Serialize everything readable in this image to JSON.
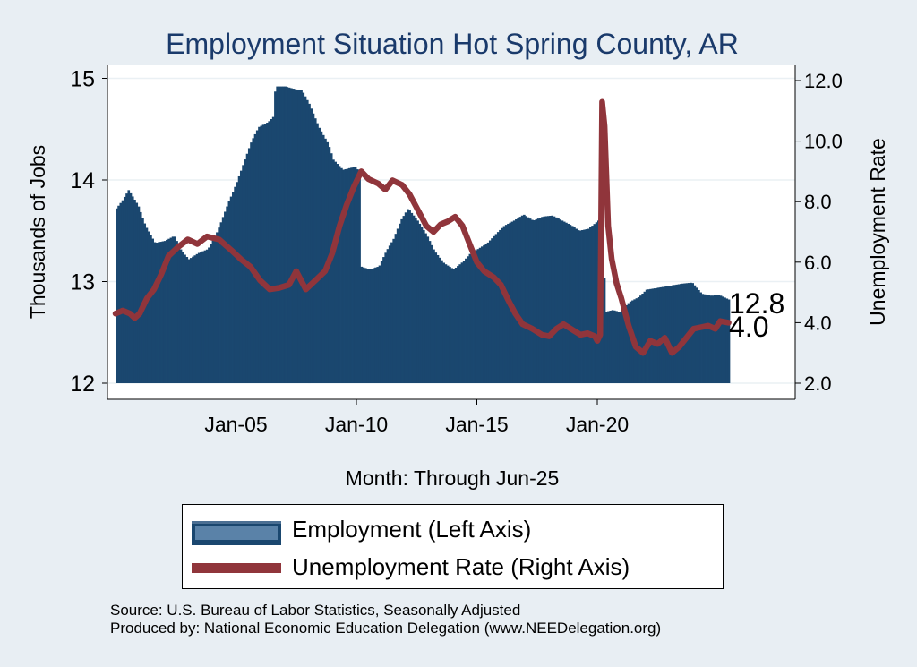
{
  "chart_data": {
    "type": "bar+line",
    "title": "Employment Situation Hot Spring  County, AR",
    "xlabel": "Month: Through Jun-25",
    "ylabel_left": "Thousands of Jobs",
    "ylabel_right": "Unemployment Rate",
    "x_start": "Jan-00",
    "x_end": "Jun-25",
    "x_ticks": [
      {
        "label": "Jan-05",
        "year": 2005
      },
      {
        "label": "Jan-10",
        "year": 2010
      },
      {
        "label": "Jan-15",
        "year": 2015
      },
      {
        "label": "Jan-20",
        "year": 2020
      }
    ],
    "ylim_left": [
      12,
      15
    ],
    "yticks_left": [
      "12",
      "13",
      "14",
      "15"
    ],
    "ylim_right": [
      2.0,
      12.0
    ],
    "yticks_right": [
      "2.0",
      "4.0",
      "6.0",
      "8.0",
      "10.0",
      "12.0"
    ],
    "grid": true,
    "series": [
      {
        "name": "Employment (Left Axis)",
        "axis": "left",
        "render": "area",
        "color": "#1a476f",
        "keypoints": [
          [
            2000.0,
            13.72
          ],
          [
            2000.25,
            13.8
          ],
          [
            2000.5,
            13.9
          ],
          [
            2000.9,
            13.75
          ],
          [
            2001.2,
            13.55
          ],
          [
            2001.6,
            13.38
          ],
          [
            2002.0,
            13.4
          ],
          [
            2002.4,
            13.45
          ],
          [
            2002.7,
            13.3
          ],
          [
            2003.0,
            13.22
          ],
          [
            2003.4,
            13.28
          ],
          [
            2003.8,
            13.32
          ],
          [
            2004.2,
            13.5
          ],
          [
            2004.6,
            13.75
          ],
          [
            2005.0,
            13.98
          ],
          [
            2005.3,
            14.18
          ],
          [
            2005.6,
            14.38
          ],
          [
            2005.9,
            14.52
          ],
          [
            2006.3,
            14.57
          ],
          [
            2006.5,
            14.62
          ],
          [
            2006.6,
            14.92
          ],
          [
            2007.0,
            14.92
          ],
          [
            2007.3,
            14.9
          ],
          [
            2007.7,
            14.88
          ],
          [
            2008.0,
            14.75
          ],
          [
            2008.4,
            14.52
          ],
          [
            2008.8,
            14.35
          ],
          [
            2009.0,
            14.2
          ],
          [
            2009.4,
            14.1
          ],
          [
            2009.9,
            14.13
          ],
          [
            2010.1,
            14.08
          ],
          [
            2010.12,
            13.15
          ],
          [
            2010.5,
            13.12
          ],
          [
            2010.9,
            13.15
          ],
          [
            2011.2,
            13.3
          ],
          [
            2011.5,
            13.42
          ],
          [
            2011.8,
            13.6
          ],
          [
            2012.1,
            13.72
          ],
          [
            2012.5,
            13.6
          ],
          [
            2012.9,
            13.45
          ],
          [
            2013.2,
            13.3
          ],
          [
            2013.6,
            13.18
          ],
          [
            2014.0,
            13.12
          ],
          [
            2014.4,
            13.2
          ],
          [
            2014.7,
            13.28
          ],
          [
            2015.0,
            13.32
          ],
          [
            2015.4,
            13.38
          ],
          [
            2015.8,
            13.48
          ],
          [
            2016.1,
            13.55
          ],
          [
            2016.5,
            13.6
          ],
          [
            2016.9,
            13.66
          ],
          [
            2017.3,
            13.6
          ],
          [
            2017.7,
            13.64
          ],
          [
            2018.1,
            13.65
          ],
          [
            2018.5,
            13.6
          ],
          [
            2018.9,
            13.55
          ],
          [
            2019.2,
            13.5
          ],
          [
            2019.6,
            13.52
          ],
          [
            2019.9,
            13.58
          ],
          [
            2020.0,
            13.6
          ],
          [
            2020.2,
            13.6
          ],
          [
            2020.28,
            12.7
          ],
          [
            2020.6,
            12.72
          ],
          [
            2020.9,
            12.7
          ],
          [
            2021.3,
            12.8
          ],
          [
            2021.7,
            12.85
          ],
          [
            2022.0,
            12.92
          ],
          [
            2022.5,
            12.94
          ],
          [
            2023.0,
            12.96
          ],
          [
            2023.5,
            12.98
          ],
          [
            2023.9,
            12.99
          ],
          [
            2024.3,
            12.88
          ],
          [
            2024.7,
            12.86
          ],
          [
            2025.0,
            12.87
          ],
          [
            2025.45,
            12.82
          ]
        ],
        "last_value": "12.8"
      },
      {
        "name": "Unemployment Rate (Right Axis)",
        "axis": "right",
        "render": "line",
        "color": "#90353b",
        "keypoints": [
          [
            2000.0,
            4.3
          ],
          [
            2000.3,
            4.4
          ],
          [
            2000.6,
            4.3
          ],
          [
            2000.8,
            4.15
          ],
          [
            2001.0,
            4.3
          ],
          [
            2001.3,
            4.8
          ],
          [
            2001.6,
            5.1
          ],
          [
            2001.9,
            5.6
          ],
          [
            2002.2,
            6.2
          ],
          [
            2002.6,
            6.5
          ],
          [
            2003.0,
            6.75
          ],
          [
            2003.4,
            6.6
          ],
          [
            2003.8,
            6.85
          ],
          [
            2004.3,
            6.75
          ],
          [
            2004.8,
            6.4
          ],
          [
            2005.2,
            6.1
          ],
          [
            2005.6,
            5.85
          ],
          [
            2006.0,
            5.4
          ],
          [
            2006.4,
            5.1
          ],
          [
            2006.8,
            5.15
          ],
          [
            2007.2,
            5.25
          ],
          [
            2007.5,
            5.7
          ],
          [
            2007.9,
            5.1
          ],
          [
            2008.3,
            5.4
          ],
          [
            2008.7,
            5.7
          ],
          [
            2009.0,
            6.3
          ],
          [
            2009.3,
            7.2
          ],
          [
            2009.6,
            7.9
          ],
          [
            2009.9,
            8.5
          ],
          [
            2010.2,
            9.0
          ],
          [
            2010.5,
            8.75
          ],
          [
            2010.9,
            8.6
          ],
          [
            2011.2,
            8.4
          ],
          [
            2011.5,
            8.7
          ],
          [
            2011.9,
            8.55
          ],
          [
            2012.2,
            8.25
          ],
          [
            2012.5,
            7.8
          ],
          [
            2012.9,
            7.2
          ],
          [
            2013.2,
            7.0
          ],
          [
            2013.5,
            7.25
          ],
          [
            2013.8,
            7.35
          ],
          [
            2014.1,
            7.5
          ],
          [
            2014.4,
            7.2
          ],
          [
            2014.7,
            6.6
          ],
          [
            2015.0,
            6.0
          ],
          [
            2015.3,
            5.7
          ],
          [
            2015.7,
            5.5
          ],
          [
            2016.0,
            5.25
          ],
          [
            2016.3,
            4.75
          ],
          [
            2016.6,
            4.3
          ],
          [
            2016.9,
            3.95
          ],
          [
            2017.3,
            3.8
          ],
          [
            2017.7,
            3.6
          ],
          [
            2018.0,
            3.55
          ],
          [
            2018.3,
            3.8
          ],
          [
            2018.6,
            3.95
          ],
          [
            2019.0,
            3.75
          ],
          [
            2019.3,
            3.6
          ],
          [
            2019.6,
            3.65
          ],
          [
            2019.9,
            3.55
          ],
          [
            2020.0,
            3.4
          ],
          [
            2020.12,
            3.6
          ],
          [
            2020.2,
            11.3
          ],
          [
            2020.3,
            10.5
          ],
          [
            2020.45,
            7.2
          ],
          [
            2020.6,
            6.1
          ],
          [
            2020.8,
            5.3
          ],
          [
            2021.0,
            4.8
          ],
          [
            2021.3,
            3.9
          ],
          [
            2021.6,
            3.2
          ],
          [
            2021.9,
            3.0
          ],
          [
            2022.2,
            3.4
          ],
          [
            2022.5,
            3.3
          ],
          [
            2022.8,
            3.5
          ],
          [
            2023.1,
            3.0
          ],
          [
            2023.4,
            3.2
          ],
          [
            2023.7,
            3.5
          ],
          [
            2024.0,
            3.8
          ],
          [
            2024.3,
            3.85
          ],
          [
            2024.6,
            3.9
          ],
          [
            2024.9,
            3.8
          ],
          [
            2025.1,
            4.05
          ],
          [
            2025.45,
            4.0
          ]
        ],
        "last_value": "4.0"
      }
    ]
  },
  "legend": {
    "employment_label": "Employment (Left Axis)",
    "unemployment_label": "Unemployment Rate (Right Axis)"
  },
  "source": {
    "line1": "Source: U.S. Bureau of Labor Statistics, Seasonally Adjusted",
    "line2": "Produced by: National Economic Education Delegation (www.NEEDelegation.org)"
  }
}
